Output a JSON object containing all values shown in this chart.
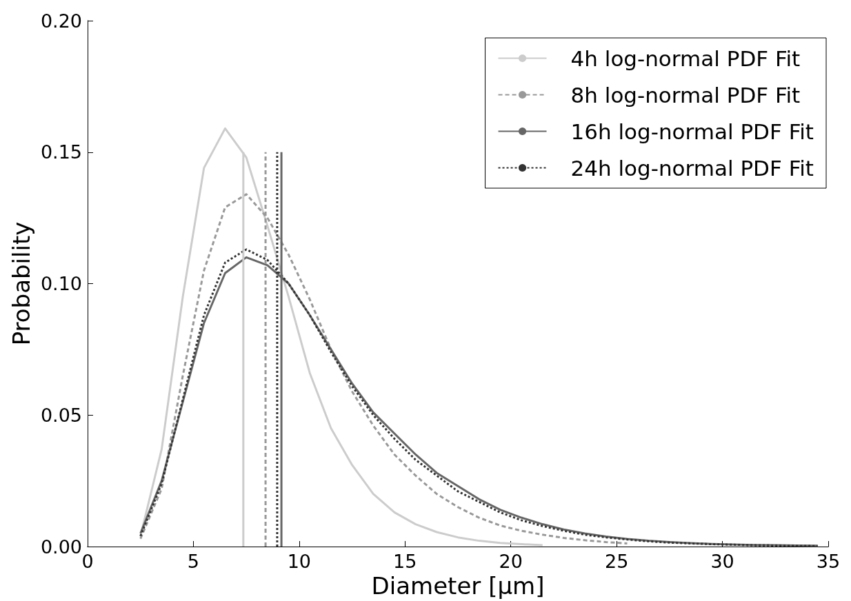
{
  "chart_data": {
    "type": "line",
    "xlabel": "Diameter [μm]",
    "ylabel": "Probability",
    "xlim": [
      0,
      35
    ],
    "xticks": [
      0,
      5,
      10,
      15,
      20,
      25,
      30,
      35
    ],
    "ylim": [
      0,
      0.2
    ],
    "yticks": [
      {
        "value": 0,
        "label": "0.00"
      },
      {
        "value": 0.05,
        "label": "0.05"
      },
      {
        "value": 0.1,
        "label": "0.10"
      },
      {
        "value": 0.15,
        "label": "0.15"
      },
      {
        "value": 0.2,
        "label": "0.20"
      }
    ],
    "grid": false,
    "legend": "top right",
    "marker": "none",
    "series": [
      {
        "name": "4h log-normal PDF Fit",
        "color": "#cccccc",
        "line_style": "solid",
        "x": [
          2.5,
          3.5,
          4.5,
          5.5,
          6.5,
          7.5,
          8.5,
          9.5,
          10.5,
          11.5,
          12.5,
          13.5,
          14.5,
          15.5,
          16.5,
          17.5,
          18.5,
          19.5,
          20.5,
          21.5
        ],
        "values": [
          0.004,
          0.037,
          0.095,
          0.144,
          0.159,
          0.148,
          0.122,
          0.095,
          0.066,
          0.045,
          0.031,
          0.02,
          0.013,
          0.0085,
          0.0055,
          0.0035,
          0.0022,
          0.0014,
          0.0009,
          0.0005
        ]
      },
      {
        "name": "8h log-normal PDF Fit",
        "color": "#999999",
        "line_style": "dashed",
        "x": [
          2.5,
          3.5,
          4.5,
          5.5,
          6.5,
          7.5,
          8.5,
          9.5,
          10.5,
          11.5,
          12.5,
          13.5,
          14.5,
          15.5,
          16.5,
          17.5,
          18.5,
          19.5,
          20.5,
          21.5,
          22.5,
          23.5,
          24.5,
          25.5
        ],
        "values": [
          0.003,
          0.022,
          0.065,
          0.105,
          0.129,
          0.134,
          0.125,
          0.111,
          0.094,
          0.075,
          0.059,
          0.046,
          0.035,
          0.027,
          0.02,
          0.015,
          0.011,
          0.008,
          0.006,
          0.0045,
          0.0033,
          0.0024,
          0.0017,
          0.0012
        ]
      },
      {
        "name": "16h log-normal PDF Fit",
        "color": "#666666",
        "line_style": "solid",
        "x": [
          2.5,
          3.5,
          4.5,
          5.5,
          6.5,
          7.5,
          8.5,
          9.5,
          10.5,
          11.5,
          12.5,
          13.5,
          14.5,
          15.5,
          16.5,
          17.5,
          18.5,
          19.5,
          20.5,
          21.5,
          22.5,
          23.5,
          24.5,
          25.5,
          26.5,
          27.5,
          28.5,
          29.5,
          30.5,
          31.5,
          32.5,
          33.5,
          34.5
        ],
        "values": [
          0.005,
          0.025,
          0.055,
          0.085,
          0.104,
          0.11,
          0.107,
          0.1,
          0.088,
          0.075,
          0.062,
          0.051,
          0.043,
          0.035,
          0.028,
          0.023,
          0.018,
          0.014,
          0.011,
          0.0085,
          0.0065,
          0.005,
          0.0038,
          0.0029,
          0.0022,
          0.0017,
          0.0013,
          0.001,
          0.0008,
          0.0006,
          0.0005,
          0.0004,
          0.0003
        ]
      },
      {
        "name": "24h log-normal PDF Fit",
        "color": "#333333",
        "line_style": "dotted",
        "x": [
          2.5,
          3.5,
          4.5,
          5.5,
          6.5,
          7.5,
          8.5,
          9.5,
          10.5,
          11.5,
          12.5,
          13.5,
          14.5,
          15.5,
          16.5,
          17.5,
          18.5,
          19.5,
          20.5,
          21.5,
          22.5,
          23.5,
          24.5,
          25.5,
          26.5,
          27.5,
          28.5,
          29.5,
          30.5,
          31.5,
          32.5,
          33.5,
          34.5
        ],
        "values": [
          0.004,
          0.024,
          0.056,
          0.088,
          0.108,
          0.113,
          0.109,
          0.1,
          0.088,
          0.074,
          0.061,
          0.05,
          0.041,
          0.033,
          0.027,
          0.021,
          0.017,
          0.013,
          0.01,
          0.0078,
          0.006,
          0.0045,
          0.0035,
          0.0027,
          0.002,
          0.0015,
          0.0012,
          0.0009,
          0.0007,
          0.0005,
          0.0004,
          0.0003,
          0.0002
        ]
      },
      {
        "color": "#cccccc",
        "line_style": "solid",
        "x": [
          7.36,
          7.36
        ],
        "values": [
          0,
          0.15
        ]
      },
      {
        "color": "#999999",
        "line_style": "dashed",
        "x": [
          8.41,
          8.41
        ],
        "values": [
          0,
          0.15
        ]
      },
      {
        "color": "#333333",
        "line_style": "dotted",
        "x": [
          8.96,
          8.96
        ],
        "values": [
          0,
          0.15
        ]
      },
      {
        "color": "#666666",
        "line_style": "solid",
        "x": [
          9.16,
          9.16
        ],
        "values": [
          0,
          0.15
        ]
      }
    ]
  }
}
